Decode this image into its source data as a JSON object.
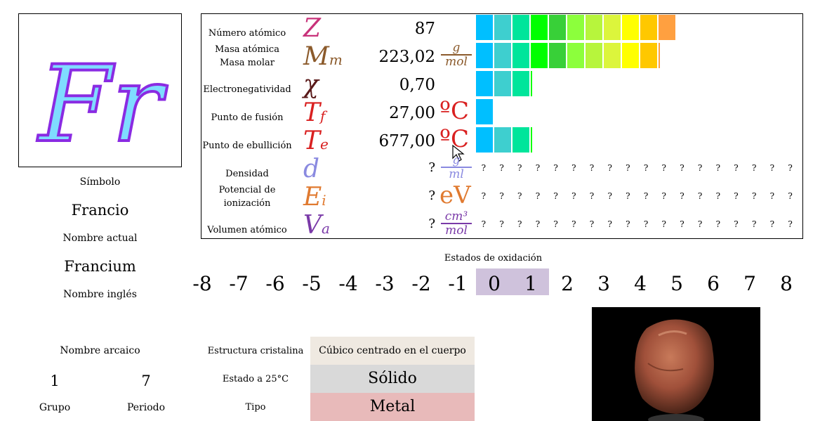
{
  "element": {
    "symbol": "Fr",
    "symbol_label": "Símbolo",
    "name": "Francio",
    "name_label": "Nombre actual",
    "english_name": "Francium",
    "english_label": "Nombre inglés",
    "archaic_label": "Nombre arcaico",
    "group": "1",
    "group_label": "Grupo",
    "period": "7",
    "period_label": "Periodo"
  },
  "properties": [
    {
      "label": "Número atómico",
      "symbol": "Z",
      "value": "87",
      "unit": "",
      "bar_cells": 11,
      "color": "#c8327a"
    },
    {
      "label": "Masa atómica\nMasa molar",
      "symbol": "M",
      "sub": "m",
      "value": "223,02",
      "unit_num": "g",
      "unit_den": "mol",
      "bar_cells": 10,
      "color": "#8b5a2b"
    },
    {
      "label": "Electronegatividad",
      "symbol": "χ",
      "value": "0,70",
      "unit": "",
      "bar_cells": 3,
      "color": "#5a1a1a"
    },
    {
      "label": "Punto de fusión",
      "symbol": "T",
      "sub": "f",
      "value": "27,00",
      "unit": "ºC",
      "bar_cells": 1,
      "color": "#d92020"
    },
    {
      "label": "Punto de ebullición",
      "symbol": "T",
      "sub": "e",
      "value": "677,00",
      "unit": "ºC",
      "bar_cells": 3,
      "color": "#d92020"
    },
    {
      "label": "Densidad",
      "symbol": "d",
      "value": "?",
      "unit_num": "g",
      "unit_den": "ml",
      "color": "#8a8ae0"
    },
    {
      "label": "Potencial de\nionización",
      "symbol": "E",
      "sub": "i",
      "value": "?",
      "unit": "eV",
      "color": "#e07a30"
    },
    {
      "label": "Volumen atómico",
      "symbol": "V",
      "sub": "a",
      "value": "?",
      "unit_num": "cm³",
      "unit_den": "mol",
      "color": "#7a3aa8"
    }
  ],
  "unknown_mark": "?",
  "bar_colors": [
    "#00bfff",
    "#3ecfcf",
    "#00e59b",
    "#00ff00",
    "#38d038",
    "#8cff3c",
    "#b7f53c",
    "#dcf53c",
    "#ffff00",
    "#ffc800",
    "#ffa040"
  ],
  "oxidation": {
    "title": "Estados de oxidación",
    "states": [
      "-8",
      "-7",
      "-6",
      "-5",
      "-4",
      "-3",
      "-2",
      "-1",
      "0",
      "1",
      "2",
      "3",
      "4",
      "5",
      "6",
      "7",
      "8"
    ],
    "active": [
      "0",
      "1"
    ]
  },
  "structure": {
    "crystal_label": "Estructura cristalina",
    "crystal_value": "Cúbico centrado en el cuerpo",
    "state_label": "Estado a 25°C",
    "state_value": "Sólido",
    "type_label": "Tipo",
    "type_value": "Metal",
    "colors": {
      "crystal": "#efe9e1",
      "state": "#d9d9d9",
      "type": "#e8baba"
    }
  }
}
